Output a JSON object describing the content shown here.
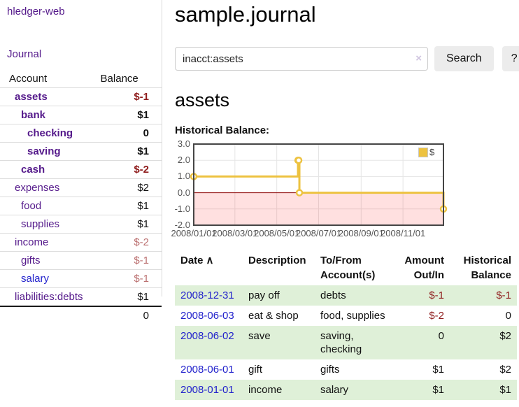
{
  "app": {
    "brand": "hledger-web",
    "nav_journal": "Journal"
  },
  "colors": {
    "link_purple": "#551a8b",
    "link_blue": "#2222cc",
    "neg_strong": "#8f1d1d",
    "neg_soft": "#bb7070",
    "stripe_green": "#dff0d8",
    "accent_gold": "#edc240"
  },
  "header": {
    "title": "sample.journal"
  },
  "search": {
    "value": "inacct:assets",
    "clear_icon": "×",
    "button_label": "Search",
    "help_label": "?"
  },
  "sidebar": {
    "accounts_header": {
      "account": "Account",
      "balance": "Balance"
    },
    "accounts": [
      {
        "name": "assets",
        "indent": 1,
        "bold": true,
        "balance": "$-1",
        "neg": "strong",
        "link": "purple"
      },
      {
        "name": "bank",
        "indent": 2,
        "bold": true,
        "balance": "$1",
        "neg": "none",
        "link": "purple"
      },
      {
        "name": "checking",
        "indent": 3,
        "bold": true,
        "balance": "0",
        "neg": "none",
        "link": "purple"
      },
      {
        "name": "saving",
        "indent": 3,
        "bold": true,
        "balance": "$1",
        "neg": "none",
        "link": "purple"
      },
      {
        "name": "cash",
        "indent": 2,
        "bold": true,
        "balance": "$-2",
        "neg": "strong",
        "link": "purple"
      },
      {
        "name": "expenses",
        "indent": 1,
        "bold": false,
        "balance": "$2",
        "neg": "none",
        "link": "purple"
      },
      {
        "name": "food",
        "indent": 2,
        "bold": false,
        "balance": "$1",
        "neg": "none",
        "link": "purple"
      },
      {
        "name": "supplies",
        "indent": 2,
        "bold": false,
        "balance": "$1",
        "neg": "none",
        "link": "purple"
      },
      {
        "name": "income",
        "indent": 1,
        "bold": false,
        "balance": "$-2",
        "neg": "soft",
        "link": "purple"
      },
      {
        "name": "gifts",
        "indent": 2,
        "bold": false,
        "balance": "$-1",
        "neg": "soft",
        "link": "purple"
      },
      {
        "name": "salary",
        "indent": 2,
        "bold": false,
        "balance": "$-1",
        "neg": "soft",
        "link": "blue"
      },
      {
        "name": "liabilities:debts",
        "indent": 1,
        "bold": false,
        "balance": "$1",
        "neg": "none",
        "link": "purple"
      }
    ],
    "total": "0"
  },
  "account_page": {
    "title": "assets",
    "chart_label": "Historical Balance:"
  },
  "chart_data": {
    "type": "line",
    "step": true,
    "title": "Historical Balance",
    "legend": "$",
    "legend_position": "top-right",
    "grid": true,
    "ylim": [
      -2.0,
      3.0
    ],
    "series": [
      {
        "name": "$",
        "color": "#edc240",
        "points": [
          {
            "date": "2008/01/01",
            "t": 0.0,
            "y": 1
          },
          {
            "date": "2008/06/01",
            "t": 0.4176,
            "y": 2
          },
          {
            "date": "2008/06/02",
            "t": 0.4203,
            "y": 2
          },
          {
            "date": "2008/06/03",
            "t": 0.4231,
            "y": 0
          },
          {
            "date": "2008/12/31",
            "t": 1.0,
            "y": -1
          }
        ]
      }
    ],
    "yticks": [
      {
        "v": 3,
        "label": "3.0"
      },
      {
        "v": 2,
        "label": "2.0"
      },
      {
        "v": 1,
        "label": "1.0"
      },
      {
        "v": 0,
        "label": "0.0"
      },
      {
        "v": -1,
        "label": "-1.0"
      },
      {
        "v": -2,
        "label": "-2.0"
      }
    ],
    "xticks": [
      {
        "t": 0.0,
        "label": "2008/01/01"
      },
      {
        "t": 0.1648,
        "label": "2008/03/01"
      },
      {
        "t": 0.3324,
        "label": "2008/05/01"
      },
      {
        "t": 0.5,
        "label": "2008/07/01"
      },
      {
        "t": 0.6703,
        "label": "2008/09/01"
      },
      {
        "t": 0.8379,
        "label": "2008/11/01"
      }
    ],
    "negative_region_color": "rgba(255,0,0,0.12)",
    "zero_line_color": "#8b0000",
    "grid_color": "#e5e5e5",
    "border_color": "#454545"
  },
  "register": {
    "headers": {
      "date": "Date",
      "sort_icon": "∧",
      "description": "Description",
      "accounts": "To/From Account(s)",
      "amount": "Amount Out/In",
      "balance": "Historical Balance"
    },
    "rows": [
      {
        "date": "2008-12-31",
        "description": "pay off",
        "accounts": "debts",
        "amount": "$-1",
        "amount_neg": true,
        "balance": "$-1",
        "balance_neg": true
      },
      {
        "date": "2008-06-03",
        "description": "eat & shop",
        "accounts": "food, supplies",
        "amount": "$-2",
        "amount_neg": true,
        "balance": "0",
        "balance_neg": false
      },
      {
        "date": "2008-06-02",
        "description": "save",
        "accounts": "saving, checking",
        "amount": "0",
        "amount_neg": false,
        "balance": "$2",
        "balance_neg": false
      },
      {
        "date": "2008-06-01",
        "description": "gift",
        "accounts": "gifts",
        "amount": "$1",
        "amount_neg": false,
        "balance": "$2",
        "balance_neg": false
      },
      {
        "date": "2008-01-01",
        "description": "income",
        "accounts": "salary",
        "amount": "$1",
        "amount_neg": false,
        "balance": "$1",
        "balance_neg": false
      }
    ]
  }
}
